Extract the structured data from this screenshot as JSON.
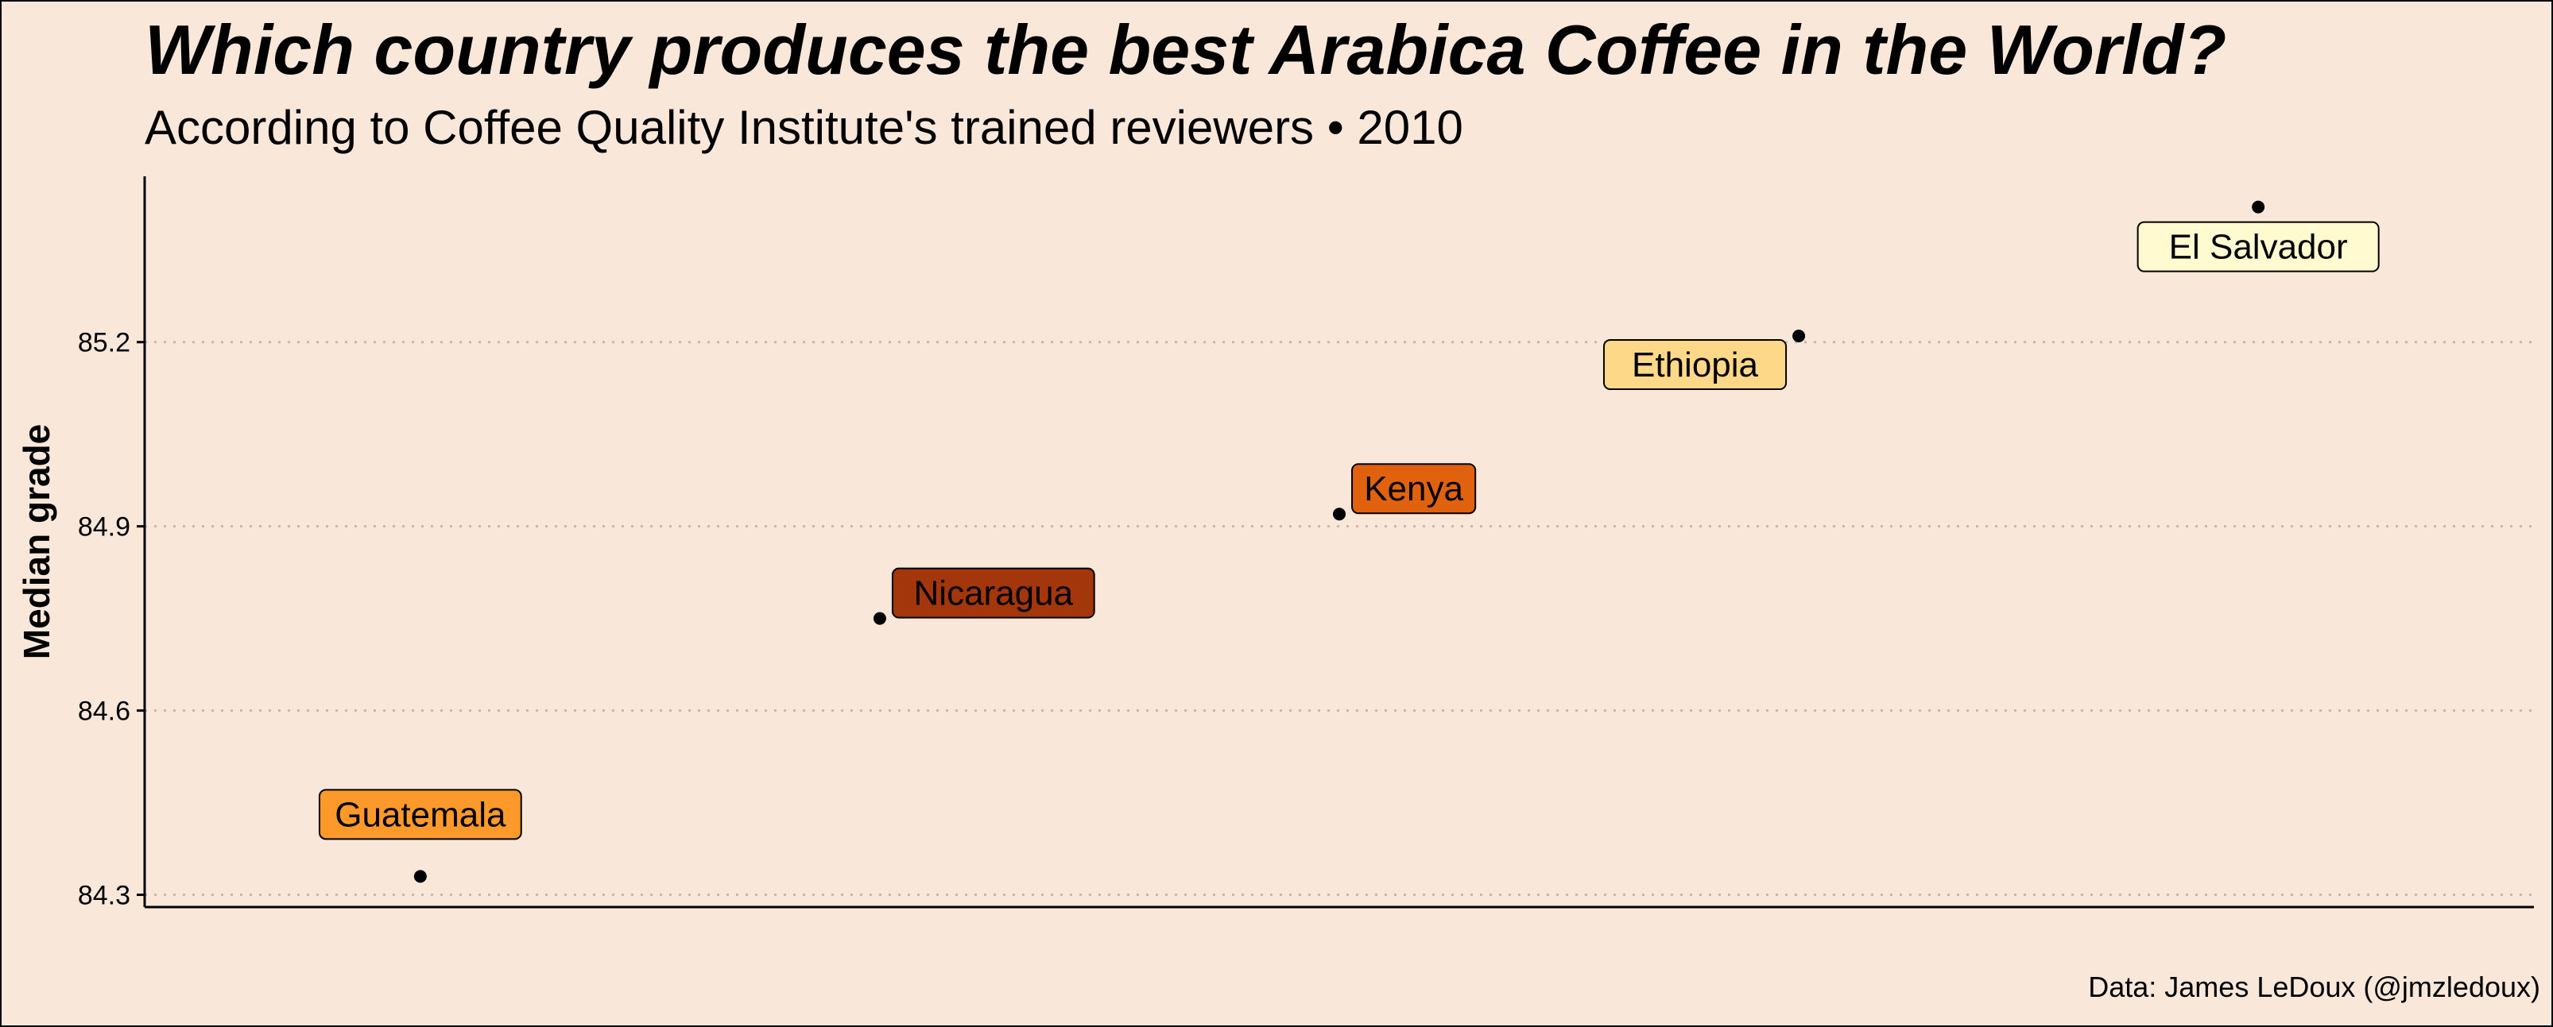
{
  "chart_data": {
    "type": "scatter",
    "title": "Which country produces the best Arabica Coffee in the World?",
    "subtitle": "According to Coffee Quality Institute's trained reviewers • 2010",
    "caption": "Data: James LeDoux (@jmzledoux)",
    "xlabel": "",
    "ylabel": "Median grade",
    "ylim": [
      84.28,
      85.47
    ],
    "yticks": [
      "84.3",
      "84.6",
      "84.9",
      "85.2"
    ],
    "grid": "horizontal-dotted",
    "points": [
      {
        "label": "Guatemala",
        "x": 1,
        "y": 84.33,
        "color": "#fb9a2b",
        "label_side": "above"
      },
      {
        "label": "Nicaragua",
        "x": 2,
        "y": 84.75,
        "color": "#a3360b",
        "label_side": "right"
      },
      {
        "label": "Kenya",
        "x": 3,
        "y": 84.92,
        "color": "#e0620e",
        "label_side": "right"
      },
      {
        "label": "Ethiopia",
        "x": 4,
        "y": 85.21,
        "color": "#fed889",
        "label_side": "left"
      },
      {
        "label": "El Salvador",
        "x": 5,
        "y": 85.42,
        "color": "#fffad0",
        "label_side": "below"
      }
    ]
  }
}
